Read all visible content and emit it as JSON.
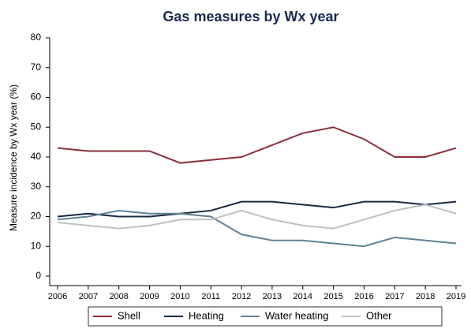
{
  "chart_data": {
    "type": "line",
    "title": "Gas measures by Wx year",
    "y_label": "Measure incidence by Wx year (%)",
    "categories": [
      "2006",
      "2007",
      "2008",
      "2009",
      "2010",
      "2011",
      "2012",
      "2013",
      "2014",
      "2015",
      "2016",
      "2017",
      "2018",
      "2019"
    ],
    "series": [
      {
        "name": "Shell",
        "color": "#8b2f3a",
        "values": [
          43,
          42,
          42,
          42,
          38,
          39,
          40,
          44,
          48,
          50,
          46,
          40,
          40,
          43
        ]
      },
      {
        "name": "Heating",
        "color": "#1a2a44",
        "values": [
          20,
          21,
          20,
          20,
          21,
          22,
          25,
          25,
          24,
          23,
          25,
          25,
          24,
          25
        ]
      },
      {
        "name": "Water heating",
        "color": "#5f8296",
        "values": [
          19,
          20,
          22,
          21,
          21,
          20,
          14,
          12,
          12,
          11,
          10,
          13,
          12,
          11
        ]
      },
      {
        "name": "Other",
        "color": "#c0c0c0",
        "values": [
          18,
          17,
          16,
          17,
          19,
          19,
          22,
          19,
          17,
          16,
          19,
          22,
          24,
          21
        ]
      }
    ],
    "ylim": [
      0,
      80
    ],
    "yticks": [
      0,
      10,
      20,
      30,
      40,
      50,
      60,
      70,
      80
    ],
    "grid": false
  }
}
